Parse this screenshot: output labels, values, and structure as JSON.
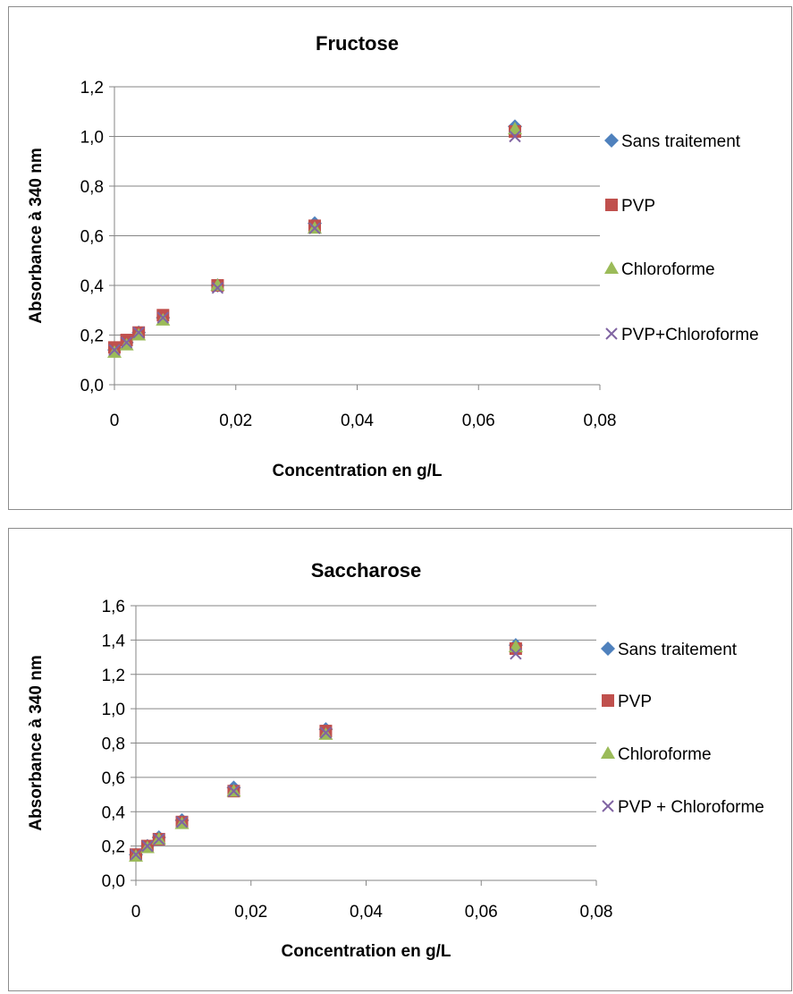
{
  "colors": {
    "Sans traitement": "#4f81bd",
    "PVP": "#c0504d",
    "Chloroforme": "#9bbb59",
    "PVP+Chloroforme": "#8064a2",
    "grid": "#868686",
    "frame": "#8c8c8c"
  },
  "chart_data": [
    {
      "type": "scatter",
      "title": "Fructose",
      "xlabel": "Concentration  en g/L",
      "ylabel": "Absorbance à 340 nm",
      "xlim": [
        0,
        0.08
      ],
      "ylim": [
        0,
        1.2
      ],
      "x_ticks": [
        "0",
        "0,02",
        "0,04",
        "0,06",
        "0,08"
      ],
      "y_ticks": [
        "0,0",
        "0,2",
        "0,4",
        "0,6",
        "0,8",
        "1,0",
        "1,2"
      ],
      "grid": "horizontal",
      "legend_position": "right",
      "series": [
        {
          "name": "Sans traitement",
          "marker": "diamond",
          "x": [
            0,
            0.002,
            0.004,
            0.008,
            0.017,
            0.033,
            0.066
          ],
          "y": [
            0.14,
            0.17,
            0.21,
            0.27,
            0.4,
            0.65,
            1.04
          ]
        },
        {
          "name": "PVP",
          "marker": "square",
          "x": [
            0,
            0.002,
            0.004,
            0.008,
            0.017,
            0.033,
            0.066
          ],
          "y": [
            0.15,
            0.18,
            0.21,
            0.28,
            0.4,
            0.64,
            1.02
          ]
        },
        {
          "name": "Chloroforme",
          "marker": "triangle",
          "x": [
            0,
            0.002,
            0.004,
            0.008,
            0.017,
            0.033,
            0.066
          ],
          "y": [
            0.13,
            0.16,
            0.2,
            0.26,
            0.4,
            0.63,
            1.03
          ]
        },
        {
          "name": "PVP+Chloroforme",
          "marker": "x",
          "x": [
            0,
            0.002,
            0.004,
            0.008,
            0.017,
            0.033,
            0.066
          ],
          "y": [
            0.14,
            0.17,
            0.21,
            0.27,
            0.39,
            0.63,
            1.0
          ]
        }
      ]
    },
    {
      "type": "scatter",
      "title": "Saccharose",
      "xlabel": "Concentration  en g/L",
      "ylabel": "Absorbance à 340 nm",
      "xlim": [
        0,
        0.08
      ],
      "ylim": [
        0,
        1.6
      ],
      "x_ticks": [
        "0",
        "0,02",
        "0,04",
        "0,06",
        "0,08"
      ],
      "y_ticks": [
        "0,0",
        "0,2",
        "0,4",
        "0,6",
        "0,8",
        "1,0",
        "1,2",
        "1,4",
        "1,6"
      ],
      "grid": "horizontal",
      "legend_position": "right",
      "series": [
        {
          "name": "Sans traitement",
          "marker": "diamond",
          "x": [
            0,
            0.002,
            0.004,
            0.008,
            0.017,
            0.033,
            0.066
          ],
          "y": [
            0.15,
            0.2,
            0.25,
            0.35,
            0.54,
            0.88,
            1.37
          ]
        },
        {
          "name": "PVP",
          "marker": "square",
          "x": [
            0,
            0.002,
            0.004,
            0.008,
            0.017,
            0.033,
            0.066
          ],
          "y": [
            0.15,
            0.2,
            0.24,
            0.34,
            0.52,
            0.87,
            1.35
          ]
        },
        {
          "name": "Chloroforme",
          "marker": "triangle",
          "x": [
            0,
            0.002,
            0.004,
            0.008,
            0.017,
            0.033,
            0.066
          ],
          "y": [
            0.14,
            0.19,
            0.24,
            0.33,
            0.52,
            0.85,
            1.36
          ]
        },
        {
          "name": "PVP + Chloroforme",
          "marker": "x",
          "x": [
            0,
            0.002,
            0.004,
            0.008,
            0.017,
            0.033,
            0.066
          ],
          "y": [
            0.15,
            0.2,
            0.24,
            0.34,
            0.52,
            0.86,
            1.32
          ]
        }
      ]
    }
  ]
}
